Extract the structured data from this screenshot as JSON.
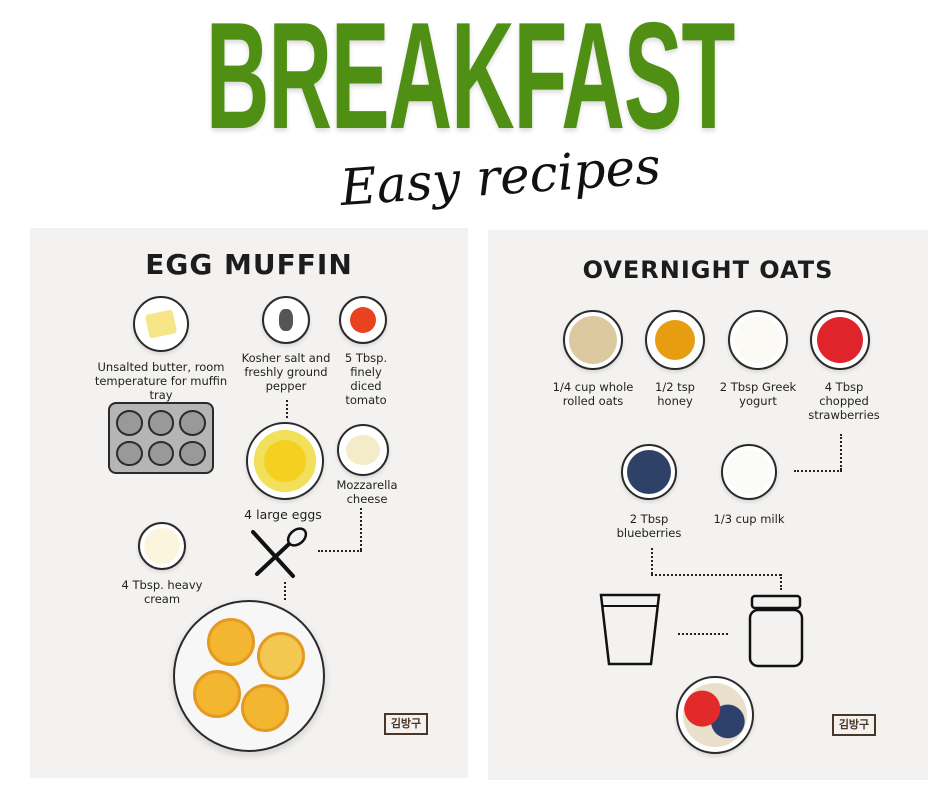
{
  "header": {
    "title": "BREAKFAST",
    "subtitle": "Easy recipes"
  },
  "egg_muffin": {
    "title": "EGG MUFFIN",
    "ingredients": [
      {
        "label": "Unsalted butter, room temperature for muffin tray"
      },
      {
        "label": "Kosher salt and freshly ground pepper"
      },
      {
        "label": "5 Tbsp. finely diced tomato"
      },
      {
        "label": "4 large eggs"
      },
      {
        "label": "Mozzarella cheese"
      },
      {
        "label": "4 Tbsp. heavy cream"
      }
    ],
    "logo": "김방구"
  },
  "overnight_oats": {
    "title": "OVERNIGHT OATS",
    "ingredients": [
      {
        "label": "1/4 cup whole rolled oats"
      },
      {
        "label": "1/2 tsp honey"
      },
      {
        "label": "2 Tbsp Greek yogurt"
      },
      {
        "label": "4 Tbsp chopped strawberries"
      },
      {
        "label": "2 Tbsp blueberries"
      },
      {
        "label": "1/3 cup milk"
      }
    ],
    "logo": "김방구"
  },
  "colors": {
    "title_green": "#4f8f13",
    "panel_bg": "#f3f2f0"
  }
}
